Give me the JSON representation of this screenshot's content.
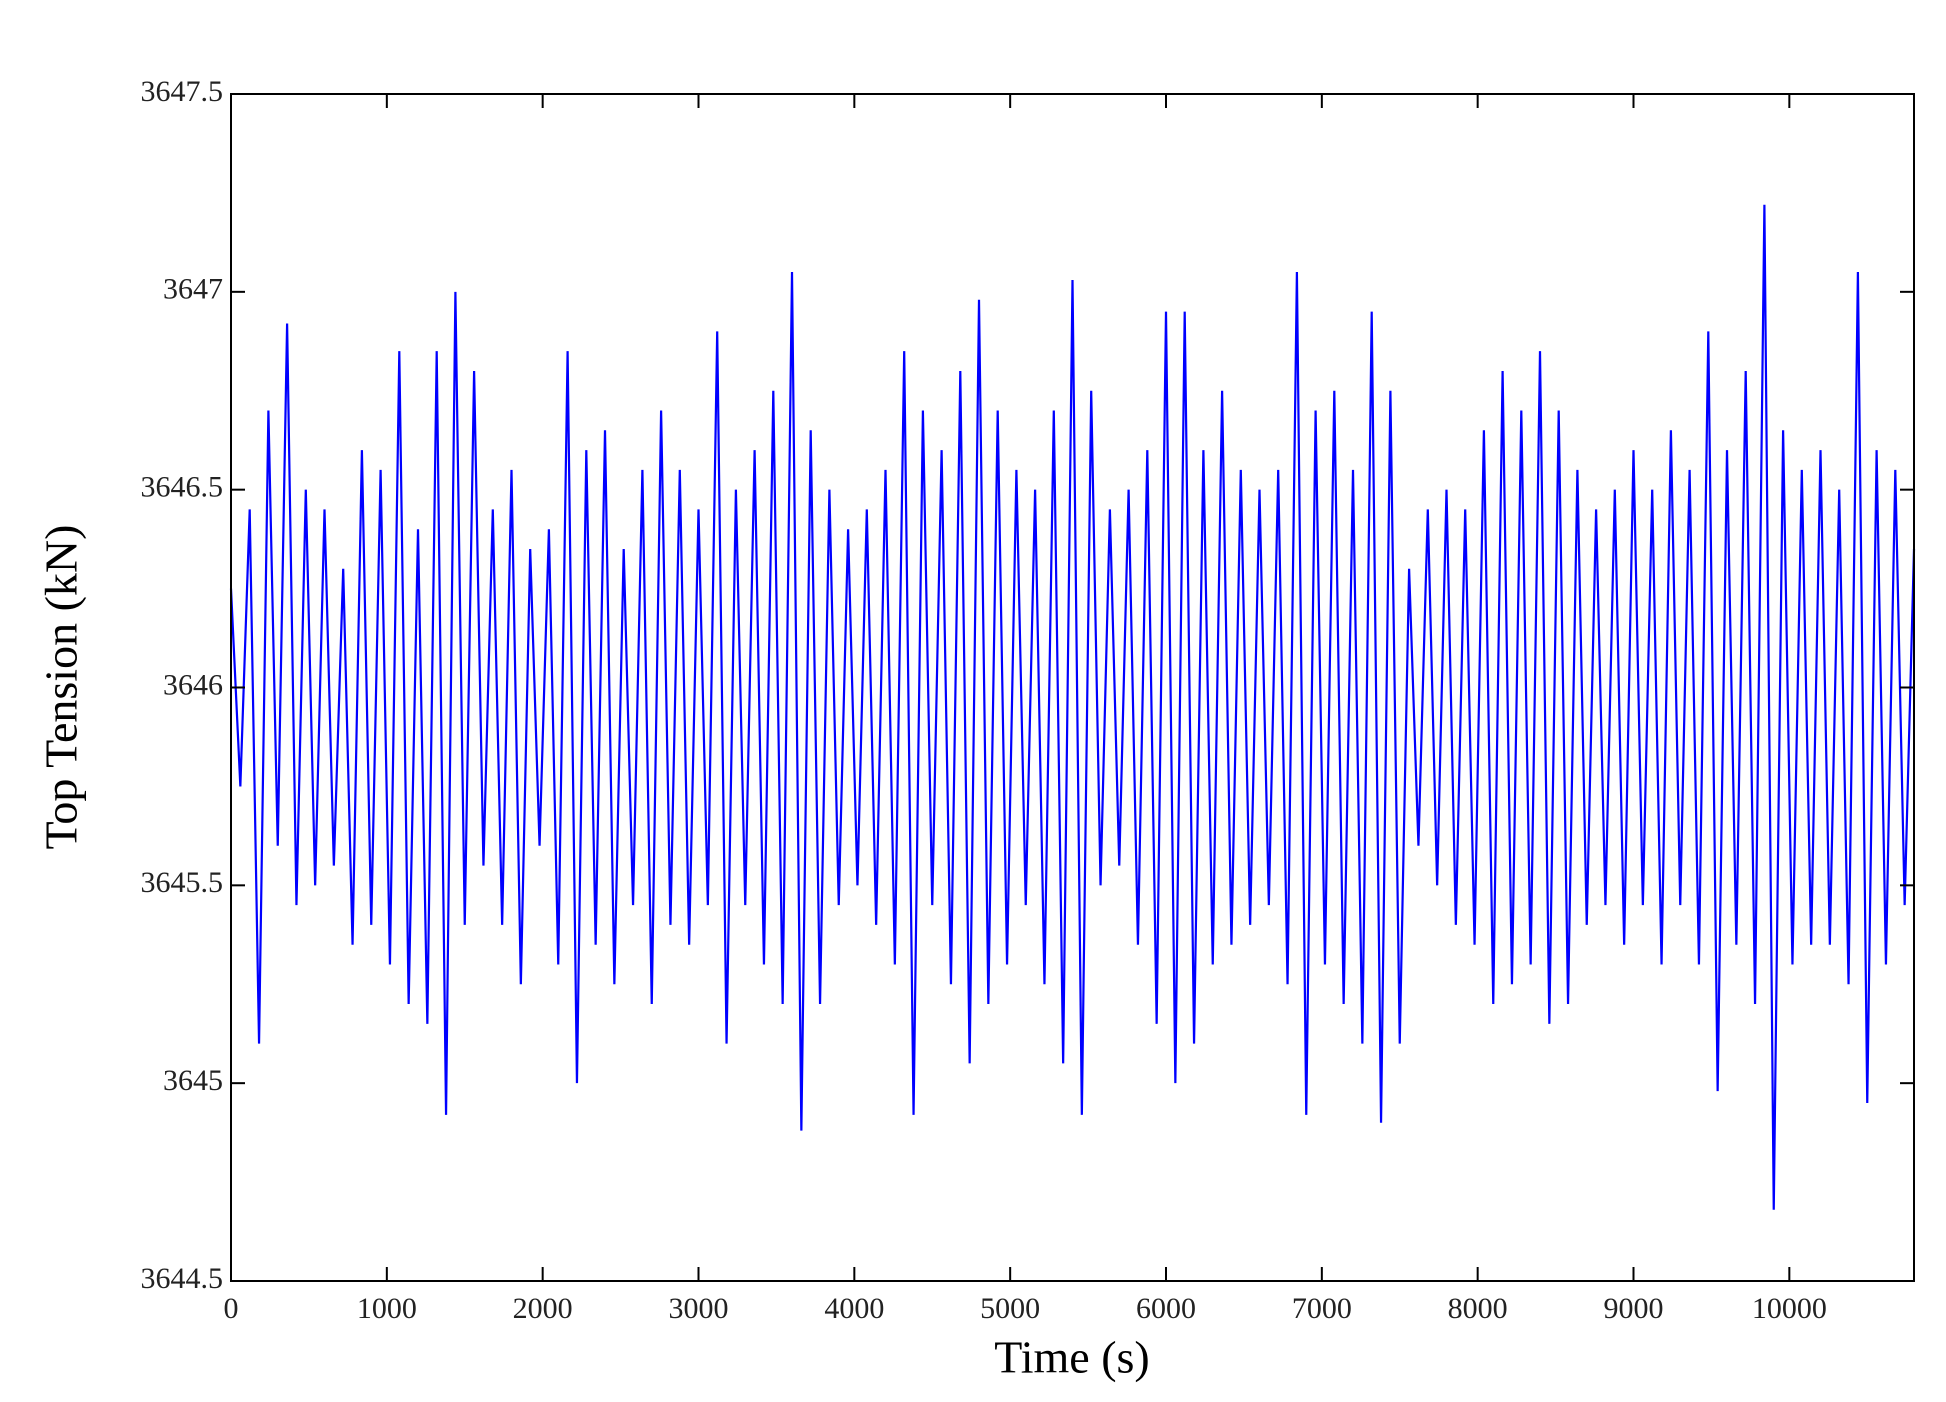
{
  "chart_data": {
    "type": "line",
    "x_label": "Time (s)",
    "y_label": "Top Tension (kN)",
    "color": "#0000ff",
    "xlim": [
      0,
      10800
    ],
    "xticks": [
      0,
      1000,
      2000,
      3000,
      4000,
      5000,
      6000,
      7000,
      8000,
      9000,
      10000
    ],
    "ylim": [
      3644.5,
      3647.5
    ],
    "yticks": [
      3644.5,
      3645,
      3645.5,
      3646,
      3646.5,
      3647,
      3647.5
    ],
    "x": [
      0,
      60,
      120,
      180,
      240,
      300,
      360,
      420,
      480,
      540,
      600,
      660,
      720,
      780,
      840,
      900,
      960,
      1020,
      1080,
      1140,
      1200,
      1260,
      1320,
      1380,
      1440,
      1500,
      1560,
      1620,
      1680,
      1740,
      1800,
      1860,
      1920,
      1980,
      2040,
      2100,
      2160,
      2220,
      2280,
      2340,
      2400,
      2460,
      2520,
      2580,
      2640,
      2700,
      2760,
      2820,
      2880,
      2940,
      3000,
      3060,
      3120,
      3180,
      3240,
      3300,
      3360,
      3420,
      3480,
      3540,
      3600,
      3660,
      3720,
      3780,
      3840,
      3900,
      3960,
      4020,
      4080,
      4140,
      4200,
      4260,
      4320,
      4380,
      4440,
      4500,
      4560,
      4620,
      4680,
      4740,
      4800,
      4860,
      4920,
      4980,
      5040,
      5100,
      5160,
      5220,
      5280,
      5340,
      5400,
      5460,
      5520,
      5580,
      5640,
      5700,
      5760,
      5820,
      5880,
      5940,
      6000,
      6060,
      6120,
      6180,
      6240,
      6300,
      6360,
      6420,
      6480,
      6540,
      6600,
      6660,
      6720,
      6780,
      6840,
      6900,
      6960,
      7020,
      7080,
      7140,
      7200,
      7260,
      7320,
      7380,
      7440,
      7500,
      7560,
      7620,
      7680,
      7740,
      7800,
      7860,
      7920,
      7980,
      8040,
      8100,
      8160,
      8220,
      8280,
      8340,
      8400,
      8460,
      8520,
      8580,
      8640,
      8700,
      8760,
      8820,
      8880,
      8940,
      9000,
      9060,
      9120,
      9180,
      9240,
      9300,
      9360,
      9420,
      9480,
      9540,
      9600,
      9660,
      9720,
      9780,
      9840,
      9900,
      9960,
      10020,
      10080,
      10140,
      10200,
      10260,
      10320,
      10380,
      10440,
      10500,
      10560,
      10620,
      10680,
      10740,
      10800
    ],
    "values": [
      3646.25,
      3645.75,
      3646.45,
      3645.1,
      3646.7,
      3645.6,
      3646.92,
      3645.45,
      3646.5,
      3645.5,
      3646.45,
      3645.55,
      3646.3,
      3645.35,
      3646.6,
      3645.4,
      3646.55,
      3645.3,
      3646.85,
      3645.2,
      3646.4,
      3645.15,
      3646.85,
      3644.92,
      3647.0,
      3645.4,
      3646.8,
      3645.55,
      3646.45,
      3645.4,
      3646.55,
      3645.25,
      3646.35,
      3645.6,
      3646.4,
      3645.3,
      3646.85,
      3645.0,
      3646.6,
      3645.35,
      3646.65,
      3645.25,
      3646.35,
      3645.45,
      3646.55,
      3645.2,
      3646.7,
      3645.4,
      3646.55,
      3645.35,
      3646.45,
      3645.45,
      3646.9,
      3645.1,
      3646.5,
      3645.45,
      3646.6,
      3645.3,
      3646.75,
      3645.2,
      3647.05,
      3644.88,
      3646.65,
      3645.2,
      3646.5,
      3645.45,
      3646.4,
      3645.5,
      3646.45,
      3645.4,
      3646.55,
      3645.3,
      3646.85,
      3644.92,
      3646.7,
      3645.45,
      3646.6,
      3645.25,
      3646.8,
      3645.05,
      3646.98,
      3645.2,
      3646.7,
      3645.3,
      3646.55,
      3645.45,
      3646.5,
      3645.25,
      3646.7,
      3645.05,
      3647.03,
      3644.92,
      3646.75,
      3645.5,
      3646.45,
      3645.55,
      3646.5,
      3645.35,
      3646.6,
      3645.15,
      3646.95,
      3645.0,
      3646.95,
      3645.1,
      3646.6,
      3645.3,
      3646.75,
      3645.35,
      3646.55,
      3645.4,
      3646.5,
      3645.45,
      3646.55,
      3645.25,
      3647.05,
      3644.92,
      3646.7,
      3645.3,
      3646.75,
      3645.2,
      3646.55,
      3645.1,
      3646.95,
      3644.9,
      3646.75,
      3645.1,
      3646.3,
      3645.6,
      3646.45,
      3645.5,
      3646.5,
      3645.4,
      3646.45,
      3645.35,
      3646.65,
      3645.2,
      3646.8,
      3645.25,
      3646.7,
      3645.3,
      3646.85,
      3645.15,
      3646.7,
      3645.2,
      3646.55,
      3645.4,
      3646.45,
      3645.45,
      3646.5,
      3645.35,
      3646.6,
      3645.45,
      3646.5,
      3645.3,
      3646.65,
      3645.45,
      3646.55,
      3645.3,
      3646.9,
      3644.98,
      3646.6,
      3645.35,
      3646.8,
      3645.2,
      3647.22,
      3644.68,
      3646.65,
      3645.3,
      3646.55,
      3645.35,
      3646.6,
      3645.35,
      3646.5,
      3645.25,
      3647.05,
      3644.95,
      3646.6,
      3645.3,
      3646.55,
      3645.45,
      3646.35
    ]
  }
}
